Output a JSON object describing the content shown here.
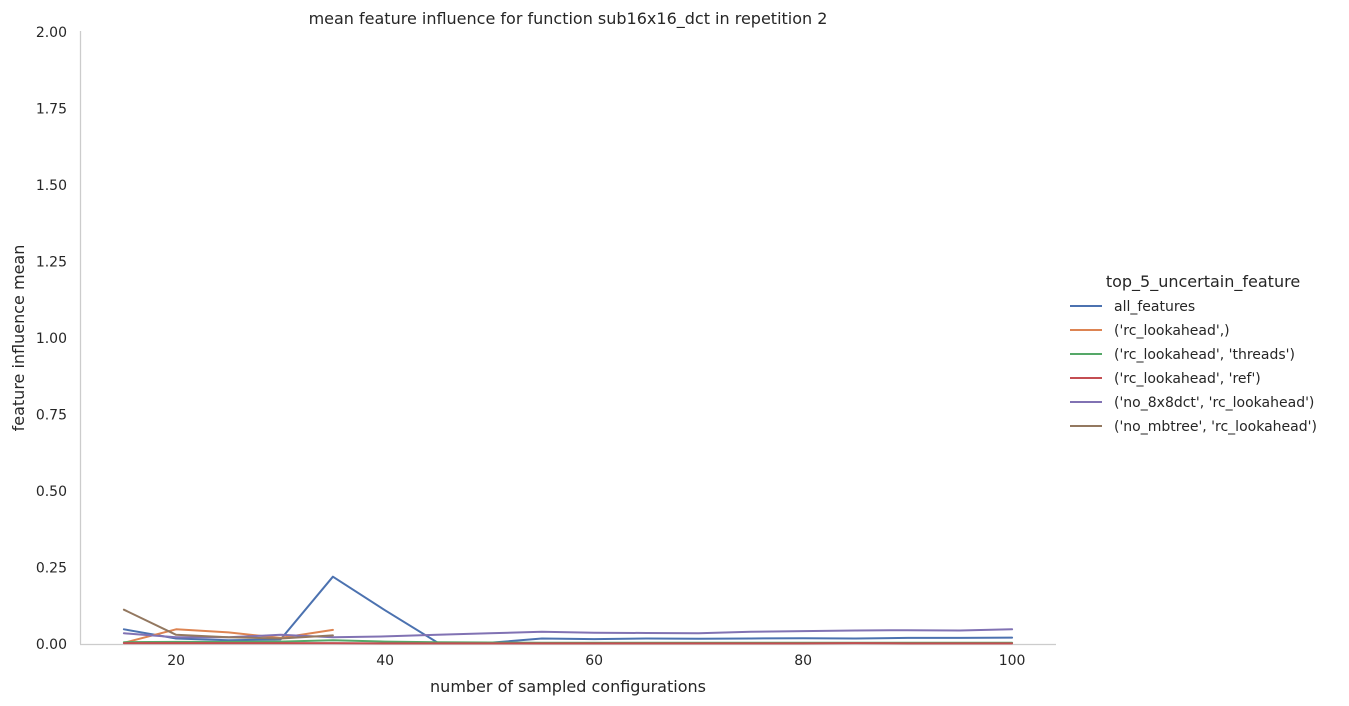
{
  "chart_data": {
    "type": "line",
    "title": "mean feature influence for function sub16x16_dct in repetition 2",
    "xlabel": "number of sampled configurations",
    "ylabel": "feature influence mean",
    "xlim": [
      10.8,
      104.2
    ],
    "ylim": [
      0,
      2
    ],
    "xticks": [
      20,
      40,
      60,
      80,
      100
    ],
    "yticks": [
      0.0,
      0.25,
      0.5,
      0.75,
      1.0,
      1.25,
      1.5,
      1.75,
      2.0
    ],
    "ytick_labels": [
      "0.00",
      "0.25",
      "0.50",
      "0.75",
      "1.00",
      "1.25",
      "1.50",
      "1.75",
      "2.00"
    ],
    "grid": false,
    "legend": {
      "title": "top_5_uncertain_feature",
      "placement": "right"
    },
    "series": [
      {
        "name": "all_features",
        "color": "#4c72b0",
        "points": [
          [
            15,
            0.048
          ],
          [
            20,
            0.018
          ],
          [
            25,
            0.012
          ],
          [
            30,
            0.015
          ],
          [
            35,
            0.22
          ],
          [
            40,
            0.11
          ],
          [
            45,
            0.005
          ],
          [
            50,
            0.004
          ],
          [
            55,
            0.018
          ],
          [
            60,
            0.016
          ],
          [
            65,
            0.018
          ],
          [
            70,
            0.017
          ],
          [
            75,
            0.018
          ],
          [
            80,
            0.019
          ],
          [
            85,
            0.018
          ],
          [
            90,
            0.02
          ],
          [
            95,
            0.02
          ],
          [
            100,
            0.021
          ]
        ]
      },
      {
        "name": "('rc_lookahead',)",
        "color": "#dd8452",
        "points": [
          [
            15,
            0.004
          ],
          [
            20,
            0.048
          ],
          [
            25,
            0.038
          ],
          [
            30,
            0.02
          ],
          [
            35,
            0.046
          ]
        ]
      },
      {
        "name": "('rc_lookahead', 'threads')",
        "color": "#55a868",
        "points": [
          [
            15,
            0.006
          ],
          [
            20,
            0.007
          ],
          [
            25,
            0.007
          ],
          [
            30,
            0.008
          ],
          [
            35,
            0.012
          ],
          [
            40,
            0.008
          ],
          [
            45,
            0.006
          ],
          [
            50,
            0.005
          ],
          [
            55,
            0.004
          ],
          [
            60,
            0.004
          ],
          [
            65,
            0.004
          ],
          [
            70,
            0.004
          ],
          [
            75,
            0.004
          ],
          [
            80,
            0.004
          ],
          [
            85,
            0.004
          ],
          [
            90,
            0.004
          ],
          [
            95,
            0.004
          ],
          [
            100,
            0.004
          ]
        ]
      },
      {
        "name": "('rc_lookahead', 'ref')",
        "color": "#c44e52",
        "points": [
          [
            15,
            0.003
          ],
          [
            20,
            0.003
          ],
          [
            25,
            0.003
          ],
          [
            30,
            0.003
          ],
          [
            35,
            0.003
          ],
          [
            40,
            0.002
          ],
          [
            45,
            0.002
          ],
          [
            50,
            0.002
          ],
          [
            55,
            0.002
          ],
          [
            60,
            0.002
          ],
          [
            65,
            0.002
          ],
          [
            70,
            0.002
          ],
          [
            75,
            0.002
          ],
          [
            80,
            0.002
          ],
          [
            85,
            0.003
          ],
          [
            90,
            0.002
          ],
          [
            95,
            0.002
          ],
          [
            100,
            0.002
          ]
        ]
      },
      {
        "name": "('no_8x8dct', 'rc_lookahead')",
        "color": "#8172b3",
        "points": [
          [
            15,
            0.035
          ],
          [
            20,
            0.022
          ],
          [
            25,
            0.022
          ],
          [
            30,
            0.03
          ],
          [
            35,
            0.022
          ],
          [
            40,
            0.025
          ],
          [
            45,
            0.03
          ],
          [
            50,
            0.035
          ],
          [
            55,
            0.04
          ],
          [
            60,
            0.037
          ],
          [
            65,
            0.036
          ],
          [
            70,
            0.035
          ],
          [
            75,
            0.04
          ],
          [
            80,
            0.042
          ],
          [
            85,
            0.044
          ],
          [
            90,
            0.045
          ],
          [
            95,
            0.044
          ],
          [
            100,
            0.048
          ]
        ]
      },
      {
        "name": "('no_mbtree', 'rc_lookahead')",
        "color": "#937860",
        "points": [
          [
            15,
            0.112
          ],
          [
            20,
            0.03
          ],
          [
            25,
            0.022
          ],
          [
            30,
            0.018
          ],
          [
            35,
            0.028
          ]
        ]
      }
    ]
  }
}
